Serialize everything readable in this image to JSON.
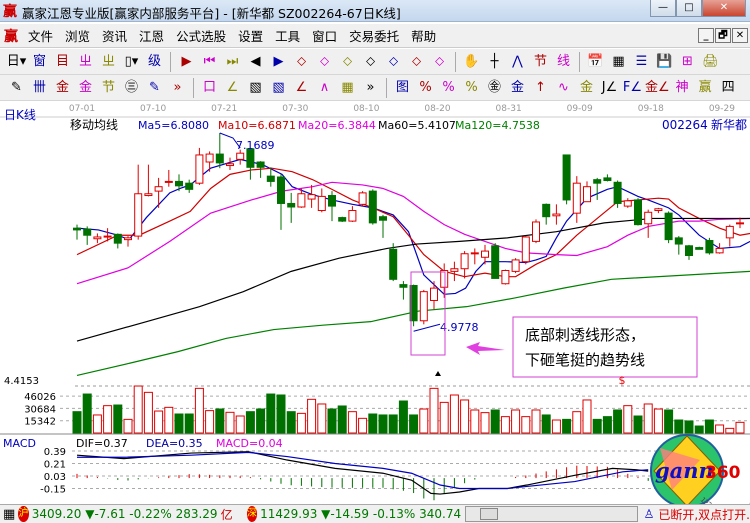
{
  "window": {
    "title": "赢家江恩专业版[赢家内部服务平台] - [新华都  SZ002264-67日K线]",
    "logo": "赢",
    "min": "—",
    "max": "□",
    "close": "✕"
  },
  "menu": {
    "logo": "赢",
    "items": [
      "文件",
      "浏览",
      "资讯",
      "江恩",
      "公式选股",
      "设置",
      "工具",
      "窗口",
      "交易委托",
      "帮助"
    ],
    "mdi": [
      "_",
      "🗗",
      "✕"
    ]
  },
  "toolbar1": [
    "日▾",
    "窗",
    "目",
    "ㄓ",
    "ㄓ",
    "▯▾",
    "级",
    "▶",
    "⏮",
    "⏭",
    "◀",
    "▶",
    "⬦",
    "⬦",
    "⬦",
    "⬦",
    "⬦",
    "⬦",
    "⬦",
    "✋",
    "┼",
    "⋀",
    "节",
    "线",
    "📅",
    "▦",
    "☰",
    "💾",
    "⊞",
    "🖨"
  ],
  "toolbar1_icons": [
    "period-icon",
    "window-icon",
    "list-icon",
    "chart-icon",
    "chart-icon",
    "candle-type-icon",
    "level-icon",
    "flag-icon",
    "first-icon",
    "last-icon",
    "left-icon",
    "right-icon",
    "diamond-icon",
    "diamond-icon",
    "diamond-icon",
    "diamond-icon",
    "diamond-icon",
    "diamond-icon",
    "diamond-icon",
    "hand-icon",
    "crosshair-icon",
    "line-icon",
    "festival-icon",
    "trend-icon",
    "calendar-icon",
    "calculator-icon",
    "notes-icon",
    "save-icon",
    "network-icon",
    "print-icon"
  ],
  "toolbar2": [
    "✎",
    "卌",
    "金",
    "金",
    "节",
    "㊂",
    "✎",
    "»",
    "口",
    "∠",
    "▧",
    "▧",
    "∠",
    "∧",
    "▦",
    "»",
    "图",
    "%",
    "%",
    "%",
    "㊎",
    "金",
    "↑",
    "∿",
    "金",
    "J∠",
    "F∠",
    "金∠",
    "神",
    "赢",
    "四"
  ],
  "chart": {
    "period_label": "日K线",
    "indicator_label": "移动均线",
    "stock_code": "002264",
    "stock_name": "新华都",
    "ma_labels": [
      {
        "text": "Ma5=6.8080",
        "color": "#0000c0"
      },
      {
        "text": "Ma10=6.6871",
        "color": "#d00000"
      },
      {
        "text": "Ma20=6.3844",
        "color": "#e000e0"
      },
      {
        "text": "Ma60=5.4107",
        "color": "#000000"
      },
      {
        "text": "Ma120=4.7538",
        "color": "#008000"
      }
    ],
    "dates": [
      "07-01",
      "07-10",
      "07-21",
      "07-30",
      "08-10",
      "08-20",
      "08-31",
      "09-09",
      "09-18",
      "09-29"
    ],
    "high_label": "7.1689",
    "low_label": "4.9778",
    "price_axis_label": "4.4153",
    "annotation": [
      "底部刺透线形态，",
      "下砸笔挺的趋势线"
    ],
    "marker": "$"
  },
  "chart_data": {
    "type": "candlestick",
    "candles": [
      [
        6.09,
        6.07,
        6.13,
        5.96
      ],
      [
        6.08,
        6.01,
        6.11,
        5.9
      ],
      [
        5.97,
        5.99,
        6.03,
        5.92
      ],
      [
        5.99,
        6.0,
        6.09,
        5.94
      ],
      [
        6.02,
        5.92,
        6.03,
        5.86
      ],
      [
        5.96,
        5.98,
        6.0,
        5.88
      ],
      [
        6.0,
        6.48,
        6.81,
        5.96
      ],
      [
        6.46,
        6.48,
        6.81,
        6.45
      ],
      [
        6.51,
        6.56,
        6.66,
        6.32
      ],
      [
        6.61,
        6.62,
        6.75,
        6.56
      ],
      [
        6.62,
        6.57,
        6.7,
        6.51
      ],
      [
        6.6,
        6.53,
        6.64,
        6.49
      ],
      [
        6.6,
        6.92,
        7.0,
        6.58
      ],
      [
        6.84,
        6.93,
        6.96,
        6.73
      ],
      [
        6.93,
        6.83,
        7.1689,
        6.77
      ],
      [
        6.8,
        6.82,
        6.89,
        6.75
      ],
      [
        6.87,
        6.94,
        6.98,
        6.81
      ],
      [
        6.99,
        6.78,
        7.0,
        6.64
      ],
      [
        6.84,
        6.78,
        6.85,
        6.66
      ],
      [
        6.68,
        6.62,
        6.78,
        6.56
      ],
      [
        6.67,
        6.37,
        6.7,
        6.07
      ],
      [
        6.37,
        6.33,
        6.49,
        6.15
      ],
      [
        6.33,
        6.48,
        6.54,
        6.32
      ],
      [
        6.42,
        6.47,
        6.58,
        6.32
      ],
      [
        6.29,
        6.45,
        6.54,
        6.27
      ],
      [
        6.46,
        6.34,
        6.51,
        6.17
      ],
      [
        6.21,
        6.17,
        6.22,
        6.16
      ],
      [
        6.17,
        6.29,
        6.34,
        6.16
      ],
      [
        6.36,
        6.49,
        6.51,
        6.34
      ],
      [
        6.51,
        6.15,
        6.53,
        6.13
      ],
      [
        6.22,
        6.18,
        6.24,
        5.98
      ],
      [
        5.85,
        5.51,
        5.92,
        5.49
      ],
      [
        5.45,
        5.42,
        5.49,
        5.28
      ],
      [
        5.44,
        5.04,
        5.45,
        4.9778
      ],
      [
        5.04,
        5.37,
        5.39,
        5.0
      ],
      [
        5.27,
        5.41,
        5.49,
        5.17
      ],
      [
        5.42,
        5.61,
        5.69,
        5.3
      ],
      [
        5.6,
        5.63,
        5.71,
        5.49
      ],
      [
        5.63,
        5.8,
        5.83,
        5.52
      ],
      [
        5.8,
        5.81,
        5.86,
        5.68
      ],
      [
        5.76,
        5.83,
        5.9,
        5.68
      ],
      [
        5.89,
        5.52,
        5.92,
        5.52
      ],
      [
        5.46,
        5.61,
        5.62,
        5.45
      ],
      [
        5.6,
        5.73,
        5.75,
        5.58
      ],
      [
        5.71,
        5.99,
        6.0,
        5.68
      ],
      [
        5.94,
        6.16,
        6.19,
        5.92
      ],
      [
        6.36,
        6.22,
        6.37,
        6.13
      ],
      [
        6.23,
        6.25,
        6.36,
        6.13
      ],
      [
        6.92,
        6.41,
        6.92,
        6.36
      ],
      [
        6.26,
        6.6,
        6.68,
        6.15
      ],
      [
        6.39,
        6.56,
        6.62,
        6.39
      ],
      [
        6.64,
        6.6,
        6.66,
        6.41
      ],
      [
        6.66,
        6.63,
        6.7,
        6.62
      ],
      [
        6.61,
        6.37,
        6.63,
        6.32
      ],
      [
        6.34,
        6.4,
        6.43,
        6.32
      ],
      [
        6.41,
        6.13,
        6.43,
        6.12
      ],
      [
        6.14,
        6.27,
        6.3,
        5.98
      ],
      [
        6.29,
        6.31,
        6.32,
        6.26
      ],
      [
        6.26,
        5.96,
        6.28,
        5.92
      ],
      [
        5.98,
        5.91,
        6.0,
        5.79
      ],
      [
        5.89,
        5.78,
        5.9,
        5.73
      ],
      [
        5.87,
        5.85,
        5.88,
        5.86
      ],
      [
        5.95,
        5.81,
        5.98,
        5.79
      ],
      [
        5.81,
        5.86,
        5.92,
        5.8
      ],
      [
        5.98,
        6.11,
        6.13,
        5.88
      ],
      [
        6.14,
        6.15,
        6.21,
        6.09
      ]
    ],
    "candle_fields": [
      "open",
      "close",
      "high",
      "low"
    ],
    "ma": {
      "ma5": {
        "color": "#0000c0",
        "points": [
          [
            0,
            6.09
          ],
          [
            2.1,
            6.07
          ],
          [
            4,
            6.01
          ],
          [
            5.1,
            5.96
          ],
          [
            6.8,
            6.21
          ],
          [
            9.1,
            6.49
          ],
          [
            10.1,
            6.54
          ],
          [
            11.1,
            6.58
          ],
          [
            13.1,
            6.77
          ],
          [
            16,
            6.87
          ],
          [
            18.2,
            6.81
          ],
          [
            20.1,
            6.7
          ],
          [
            21.1,
            6.56
          ],
          [
            23.1,
            6.47
          ],
          [
            25,
            6.41
          ],
          [
            27,
            6.36
          ],
          [
            29,
            6.32
          ],
          [
            31,
            6.24
          ],
          [
            32.5,
            6.05
          ],
          [
            34,
            5.56
          ],
          [
            36,
            5.34
          ],
          [
            37.1,
            5.35
          ],
          [
            38.1,
            5.41
          ],
          [
            39.1,
            5.6
          ],
          [
            40,
            5.71
          ],
          [
            42,
            5.71
          ],
          [
            44,
            5.7
          ],
          [
            45,
            5.73
          ],
          [
            46,
            5.77
          ],
          [
            47,
            5.98
          ],
          [
            48,
            6.17
          ],
          [
            50,
            6.43
          ],
          [
            52,
            6.53
          ],
          [
            53,
            6.56
          ],
          [
            55,
            6.45
          ],
          [
            56,
            6.41
          ],
          [
            58,
            6.32
          ],
          [
            59,
            6.24
          ],
          [
            61,
            6.01
          ],
          [
            63,
            5.86
          ],
          [
            65,
            5.88
          ],
          [
            66,
            5.94
          ]
        ]
      },
      "ma10": {
        "color": "#d00000",
        "points": [
          [
            0,
            5.79
          ],
          [
            4,
            6.01
          ],
          [
            6.1,
            6.01
          ],
          [
            9.1,
            6.17
          ],
          [
            11.1,
            6.28
          ],
          [
            13.1,
            6.54
          ],
          [
            15,
            6.7
          ],
          [
            17.1,
            6.75
          ],
          [
            19.1,
            6.77
          ],
          [
            21.1,
            6.73
          ],
          [
            23.1,
            6.64
          ],
          [
            25,
            6.53
          ],
          [
            27,
            6.41
          ],
          [
            29,
            6.32
          ],
          [
            31,
            6.22
          ],
          [
            32.5,
            6.01
          ],
          [
            34,
            5.79
          ],
          [
            36,
            5.6
          ],
          [
            38,
            5.54
          ],
          [
            40,
            5.58
          ],
          [
            42,
            5.54
          ],
          [
            43,
            5.54
          ],
          [
            45,
            5.68
          ],
          [
            47,
            5.79
          ],
          [
            49,
            6.01
          ],
          [
            51,
            6.2
          ],
          [
            53,
            6.39
          ],
          [
            55,
            6.41
          ],
          [
            57,
            6.43
          ],
          [
            58,
            6.42
          ],
          [
            59,
            6.32
          ],
          [
            61,
            6.2
          ],
          [
            63,
            6.09
          ],
          [
            65,
            6.01
          ],
          [
            66,
            6.03
          ]
        ]
      },
      "ma20": {
        "color": "#e000e0",
        "points": [
          [
            0,
            5.46
          ],
          [
            5,
            5.64
          ],
          [
            9.1,
            5.94
          ],
          [
            13.1,
            6.26
          ],
          [
            17.1,
            6.41
          ],
          [
            20.1,
            6.51
          ],
          [
            23.1,
            6.56
          ],
          [
            25,
            6.61
          ],
          [
            28,
            6.58
          ],
          [
            30,
            6.54
          ],
          [
            32,
            6.45
          ],
          [
            34,
            6.28
          ],
          [
            36,
            6.13
          ],
          [
            38,
            6.02
          ],
          [
            40,
            5.94
          ],
          [
            42,
            5.86
          ],
          [
            44,
            5.81
          ],
          [
            47,
            5.79
          ],
          [
            49,
            5.78
          ],
          [
            52,
            5.88
          ],
          [
            54,
            6.01
          ],
          [
            56,
            6.11
          ],
          [
            59,
            6.17
          ],
          [
            61,
            6.17
          ],
          [
            63,
            6.19
          ],
          [
            66,
            6.2
          ]
        ]
      },
      "ma60": {
        "color": "#000000",
        "points": [
          [
            0,
            4.81
          ],
          [
            6.8,
            5.03
          ],
          [
            12,
            5.2
          ],
          [
            16.3,
            5.37
          ],
          [
            21,
            5.6
          ],
          [
            25.7,
            5.75
          ],
          [
            30.4,
            5.86
          ],
          [
            33.3,
            5.91
          ],
          [
            37.5,
            5.94
          ],
          [
            42.2,
            5.98
          ],
          [
            47,
            6.05
          ],
          [
            51.7,
            6.15
          ],
          [
            56.4,
            6.2
          ],
          [
            61,
            6.2
          ],
          [
            66,
            6.2
          ]
        ]
      },
      "ma120": {
        "color": "#008000",
        "points": [
          [
            0,
            4.42
          ],
          [
            5.2,
            4.56
          ],
          [
            9.9,
            4.69
          ],
          [
            14.6,
            4.84
          ],
          [
            19.3,
            4.94
          ],
          [
            24.1,
            4.99
          ],
          [
            28.8,
            5.03
          ],
          [
            33.5,
            5.15
          ],
          [
            38.2,
            5.2
          ],
          [
            43,
            5.3
          ],
          [
            47.7,
            5.41
          ],
          [
            52.4,
            5.51
          ],
          [
            66,
            5.6
          ]
        ]
      }
    },
    "volume": {
      "ticks": [
        46026,
        30684,
        15342
      ],
      "values": [
        26600,
        48600,
        22500,
        34100,
        34900,
        17000,
        58600,
        50700,
        27400,
        32000,
        23700,
        23700,
        55700,
        27900,
        29900,
        25800,
        21200,
        26600,
        29900,
        48600,
        47400,
        26600,
        24500,
        42000,
        36200,
        29900,
        33700,
        26600,
        18300,
        23700,
        22500,
        22500,
        39900,
        22500,
        29900,
        55700,
        38200,
        47400,
        41200,
        28700,
        25400,
        28700,
        20400,
        28700,
        20400,
        28700,
        22500,
        16200,
        17000,
        26600,
        41200,
        17000,
        20400,
        28700,
        34100,
        21200,
        36200,
        29900,
        28700,
        16200,
        15000,
        8700,
        16200,
        10000,
        5800,
        13300
      ]
    },
    "macd": {
      "title": "MACD",
      "dif_label": "DIF=0.37",
      "dea_label": "DEA=0.35",
      "macd_label": "MACD=0.04",
      "ticks": [
        "0.39",
        "0.21",
        "0.03",
        "-0.15"
      ],
      "dif": [
        [
          0,
          0.33
        ],
        [
          4.6,
          0.28
        ],
        [
          11.2,
          0.36
        ],
        [
          16.8,
          0.38
        ],
        [
          20.6,
          0.26
        ],
        [
          25.3,
          0.14
        ],
        [
          30,
          0.07
        ],
        [
          32.8,
          -0.03
        ],
        [
          34.7,
          -0.22
        ],
        [
          35.6,
          -0.23
        ],
        [
          37.5,
          -0.2
        ],
        [
          39.4,
          -0.15
        ],
        [
          42.2,
          -0.15
        ],
        [
          44.1,
          -0.1
        ],
        [
          48.8,
          0.04
        ],
        [
          52.5,
          0.14
        ],
        [
          54.8,
          0.12
        ],
        [
          56,
          0.1
        ]
      ],
      "dea": [
        [
          0,
          0.3
        ],
        [
          4.6,
          0.3
        ],
        [
          11.2,
          0.33
        ],
        [
          16.8,
          0.37
        ],
        [
          20.6,
          0.31
        ],
        [
          25.3,
          0.21
        ],
        [
          30,
          0.14
        ],
        [
          32.8,
          0.07
        ],
        [
          35.6,
          -0.1
        ],
        [
          37.5,
          -0.15
        ],
        [
          42.2,
          -0.15
        ],
        [
          44.1,
          -0.12
        ],
        [
          48.8,
          -0.05
        ],
        [
          53.5,
          0.09
        ],
        [
          56,
          0.12
        ]
      ]
    },
    "colors": {
      "up": "#e00000",
      "down": "#007000"
    }
  },
  "logo": {
    "text": "gann",
    "num": "360",
    "ring": "1234567890123456789"
  },
  "status": {
    "sh_badge": "沪",
    "sh": "3409.20 ▼-7.61 -0.22% 283.29",
    "sh_unit": "亿",
    "sz_badge": "深",
    "sz": "11429.93 ▼-14.59 -0.13% 340.74",
    "conn": "已断开,双点打开."
  }
}
